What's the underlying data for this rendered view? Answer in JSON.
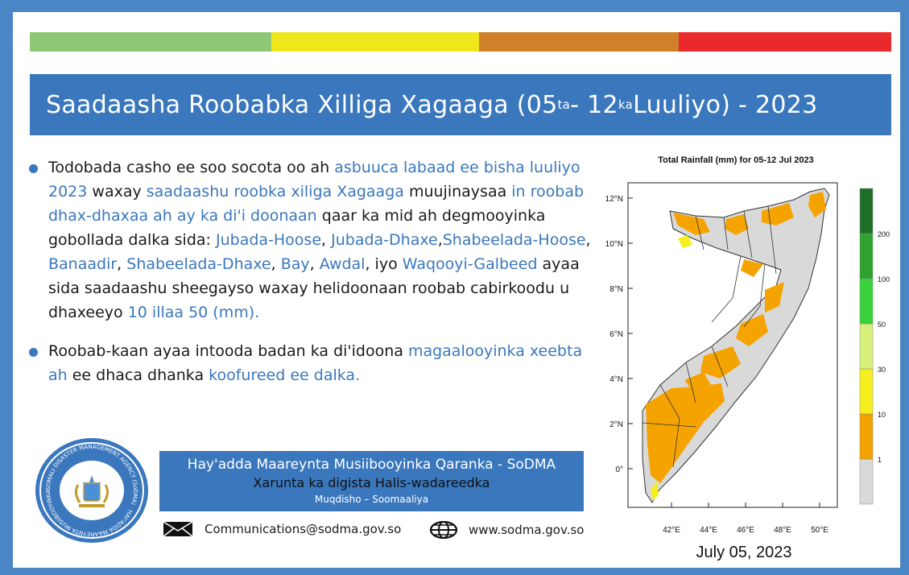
{
  "colors": {
    "background": "#4a86c5",
    "banner": "#3a77bd",
    "highlight": "#3a77bd"
  },
  "stripes": [
    "#8fc875",
    "#f0e61c",
    "#d08029",
    "#ea2a2a"
  ],
  "title": {
    "main": "Saadaasha Roobabka Xilliga Xagaaga (05",
    "sup1": "ta",
    "dash": " - 12",
    "sup2": "ka",
    "end": " Luuliyo) - 2023"
  },
  "bullets": [
    [
      {
        "t": "Todobada casho ee soo socota oo ah ",
        "h": false
      },
      {
        "t": "asbuuca labaad ee bisha luuliyo 2023",
        "h": true
      },
      {
        "t": "  waxay ",
        "h": false
      },
      {
        "t": "saadaashu roobka xiliga Xagaaga",
        "h": true
      },
      {
        "t": " muujinaysaa ",
        "h": false
      },
      {
        "t": "in roobab dhax-dhaxaa ah ay ka di'i doonaan",
        "h": true
      },
      {
        "t": " qaar ka mid ah degmooyinka gobollada dalka sida: ",
        "h": false
      },
      {
        "t": "Jubada-Hoose",
        "h": true
      },
      {
        "t": ", ",
        "h": false
      },
      {
        "t": "Jubada-Dhaxe",
        "h": true
      },
      {
        "t": ",",
        "h": false
      },
      {
        "t": "Shabeelada-Hoose",
        "h": true
      },
      {
        "t": ", ",
        "h": false
      },
      {
        "t": "Banaadir",
        "h": true
      },
      {
        "t": ", ",
        "h": false
      },
      {
        "t": "Shabeelada-Dhaxe",
        "h": true
      },
      {
        "t": ", ",
        "h": false
      },
      {
        "t": "Bay",
        "h": true
      },
      {
        "t": ", ",
        "h": false
      },
      {
        "t": "Awdal",
        "h": true
      },
      {
        "t": ", iyo ",
        "h": false
      },
      {
        "t": "Waqooyi-Galbeed",
        "h": true
      },
      {
        "t": " ayaa sida saadaashu sheegayso waxay helidoonaan roobab cabirkoodu u dhaxeeyo ",
        "h": false
      },
      {
        "t": "10 illaa 50 (mm).",
        "h": true
      }
    ],
    [
      {
        "t": "Roobab-kaan ayaa intooda badan ka di'idoona ",
        "h": false
      },
      {
        "t": "magaalooyinka xeebta ah",
        "h": true
      },
      {
        "t": " ee dhaca dhanka ",
        "h": false
      },
      {
        "t": "koofureed ee dalka.",
        "h": true
      }
    ]
  ],
  "agency": {
    "line1": "Hay'adda Maareynta Musiibooyinka Qaranka - SoDMA",
    "line2": "Xarunta ka digista Halis-wadareedka",
    "line3": "Muqdisho – Soomaaliya"
  },
  "logo": {
    "ring_text": "SOMALI DISASTER MANAGEMENT AGENCY (SoDMA) · HAY'ADDA MAAREYNTA MUSIIBOOYINKA QARANKA"
  },
  "contact": {
    "email": "Communications@sodma.gov.so",
    "website": "www.sodma.gov.so",
    "email_icon": "envelope-icon",
    "web_icon": "globe-icon"
  },
  "map": {
    "title": "Total Rainfall (mm) for 05-12 Jul 2023",
    "lat_labels": [
      "12°N",
      "10°N",
      "8°N",
      "6°N",
      "4°N",
      "2°N",
      "0°"
    ],
    "lon_labels": [
      "42°E",
      "44°E",
      "46°E",
      "48°E",
      "50°E"
    ],
    "legend": [
      {
        "color": "#d9d9d9",
        "label": "1"
      },
      {
        "color": "#f5a300",
        "label": "10"
      },
      {
        "color": "#f7ee1d",
        "label": "30"
      },
      {
        "color": "#d6f07a",
        "label": "50"
      },
      {
        "color": "#3ad23a",
        "label": "100"
      },
      {
        "color": "#2ea42e",
        "label": "200"
      },
      {
        "color": "#1f6e27",
        "label": ""
      }
    ],
    "date": "July 05, 2023"
  }
}
